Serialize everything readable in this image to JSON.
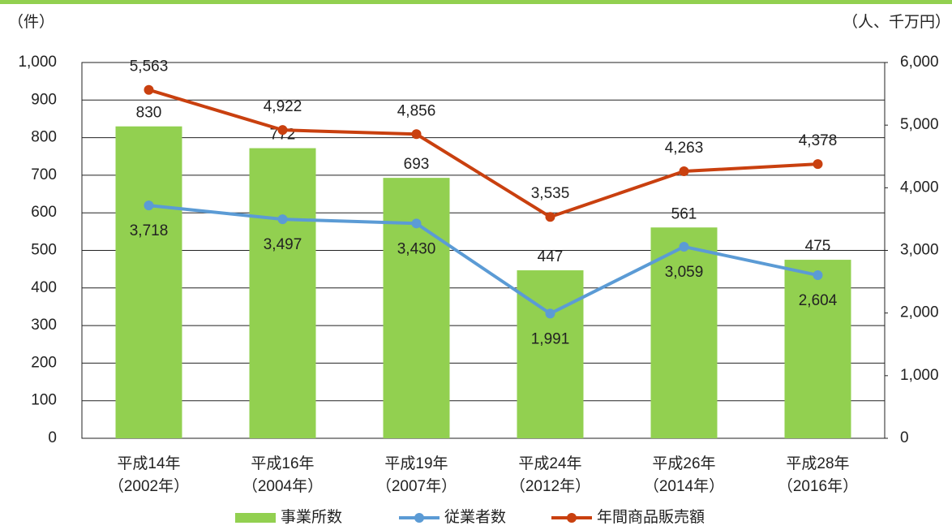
{
  "chart_data": {
    "type": "bar",
    "y_unit": "（件）",
    "y2_unit": "（人、千万円）",
    "categories": [
      [
        "平成14年",
        "（2002年）"
      ],
      [
        "平成16年",
        "（2004年）"
      ],
      [
        "平成19年",
        "（2007年）"
      ],
      [
        "平成24年",
        "（2012年）"
      ],
      [
        "平成26年",
        "（2014年）"
      ],
      [
        "平成28年",
        "（2016年）"
      ]
    ],
    "series": [
      {
        "name": "事業所数",
        "type": "bar",
        "color": "#92d050",
        "values": [
          830,
          772,
          693,
          447,
          561,
          475
        ]
      },
      {
        "name": "従業者数",
        "type": "line",
        "axis": "y2",
        "color": "#5b9bd5",
        "values": [
          3718,
          3497,
          3430,
          1991,
          3059,
          2604
        ],
        "value_labels": [
          "3,718",
          "3,497",
          "3,430",
          "1,991",
          "3,059",
          "2,604"
        ]
      },
      {
        "name": "年間商品販売額",
        "type": "line",
        "axis": "y2",
        "color": "#c9400f",
        "values": [
          5563,
          4922,
          4856,
          3535,
          4263,
          4378
        ],
        "value_labels": [
          "5,563",
          "4,922",
          "4,856",
          "3,535",
          "4,263",
          "4,378"
        ]
      }
    ],
    "ylim": [
      0,
      1000
    ],
    "yticks": [
      0,
      100,
      200,
      300,
      400,
      500,
      600,
      700,
      800,
      900,
      {
        "value": 1000,
        "label": "1,000"
      }
    ],
    "y2lim": [
      0,
      6000
    ],
    "y2ticks": [
      0,
      {
        "value": 1000,
        "label": "1,000"
      },
      {
        "value": 2000,
        "label": "2,000"
      },
      {
        "value": 3000,
        "label": "3,000"
      },
      {
        "value": 4000,
        "label": "4,000"
      },
      {
        "value": 5000,
        "label": "5,000"
      },
      {
        "value": 6000,
        "label": "6,000"
      }
    ],
    "grid": true
  }
}
